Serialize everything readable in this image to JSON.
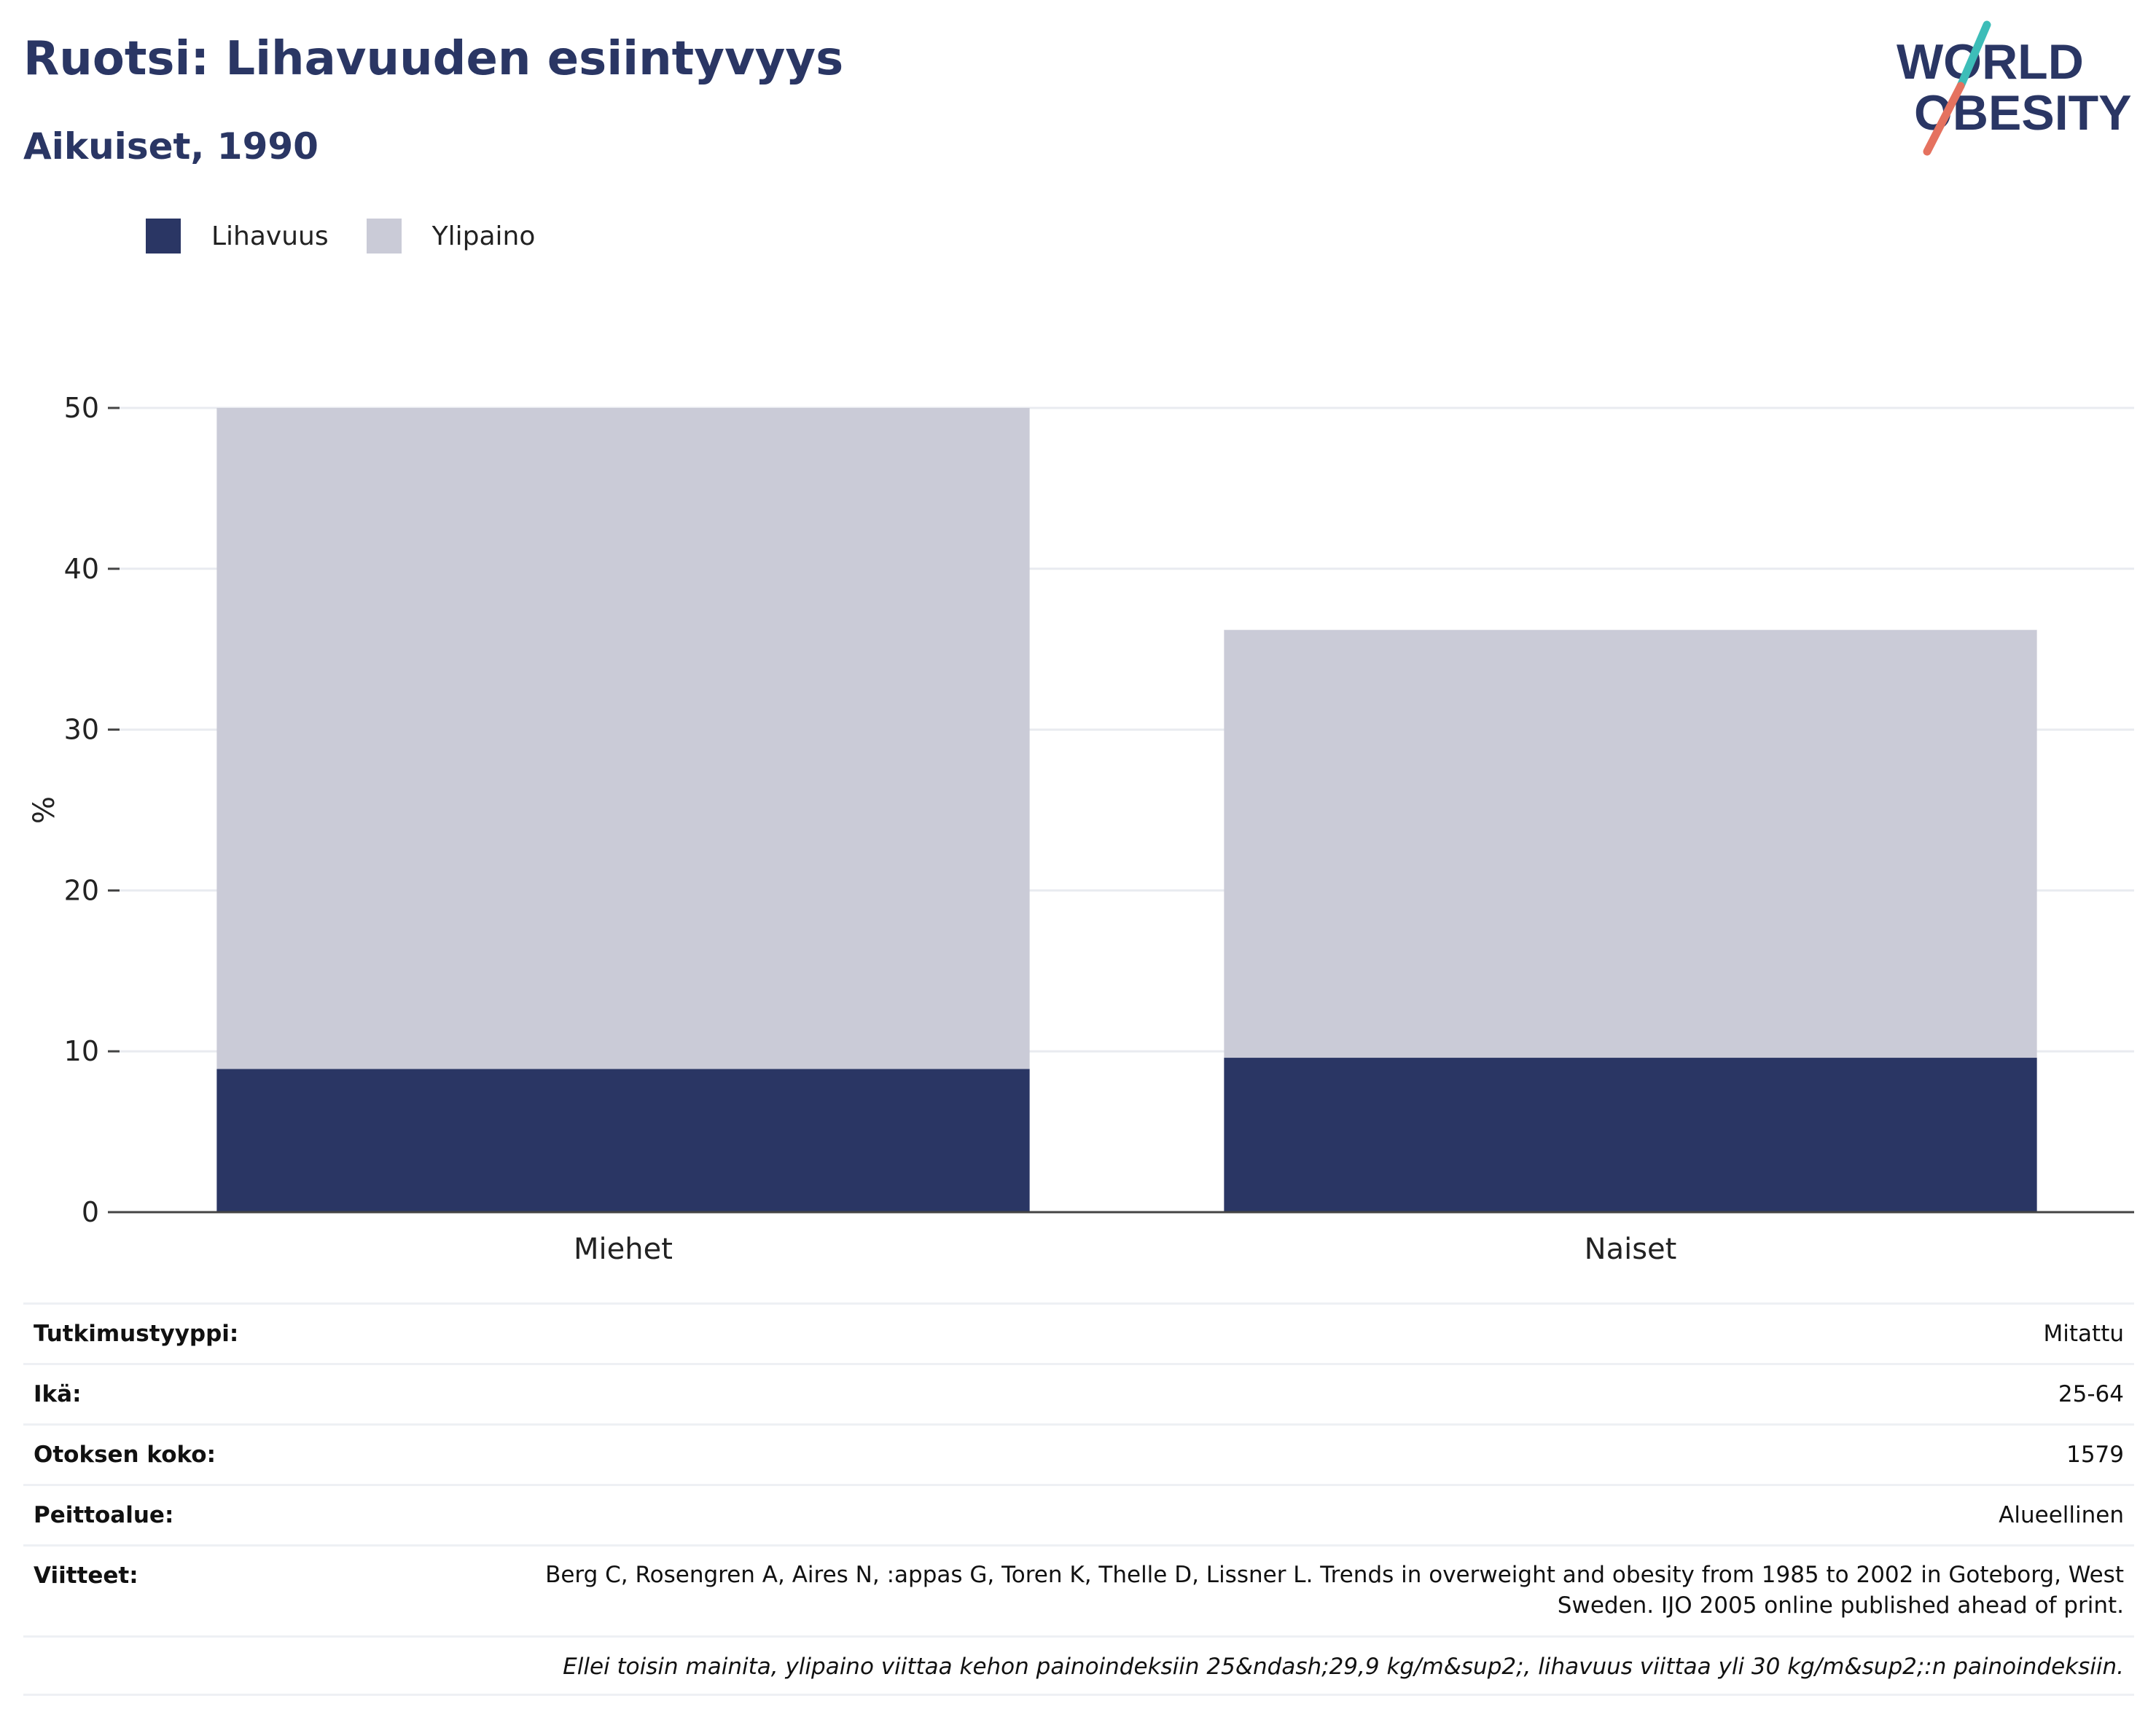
{
  "header": {
    "title": "Ruotsi: Lihavuuden esiintyvyys",
    "subtitle": "Aikuiset, 1990"
  },
  "logo": {
    "line1": "WORLD",
    "line2": "OBESITY",
    "colors": {
      "text": "#2a3664",
      "slash_top": "#3dbdb8",
      "slash_bottom": "#e5725f"
    }
  },
  "legend": [
    {
      "label": "Lihavuus",
      "color": "#2a3664"
    },
    {
      "label": "Ylipaino",
      "color": "#cacbd7"
    }
  ],
  "chart_data": {
    "type": "bar",
    "stacked": true,
    "categories": [
      "Miehet",
      "Naiset"
    ],
    "series": [
      {
        "name": "Lihavuus",
        "values": [
          8.9,
          9.6
        ],
        "color": "#2a3664"
      },
      {
        "name": "Ylipaino",
        "values": [
          41.1,
          26.6
        ],
        "color": "#cacbd7"
      }
    ],
    "ylabel": "%",
    "xlabel": "",
    "ylim": [
      0,
      50
    ],
    "yticks": [
      0,
      10,
      20,
      30,
      40,
      50
    ],
    "grid": true,
    "legend_position": "top-left"
  },
  "info": {
    "study_type": {
      "label": "Tutkimustyyppi:",
      "value": "Mitattu"
    },
    "age": {
      "label": "Ikä:",
      "value": "25-64"
    },
    "sample_size": {
      "label": "Otoksen koko:",
      "value": "1579"
    },
    "coverage": {
      "label": "Peittoalue:",
      "value": "Alueellinen"
    },
    "references": {
      "label": "Viitteet:",
      "value": "Berg C, Rosengren A, Aires N, :appas G, Toren K, Thelle D, Lissner L. Trends in overweight and obesity from 1985 to 2002 in Goteborg, West Sweden. IJO 2005 online published ahead of print."
    },
    "note": "Ellei toisin mainita, ylipaino viittaa kehon painoindeksiin 25&ndash;29,9 kg/m&sup2;, lihavuus viittaa yli 30 kg/m&sup2;:n painoindeksiin."
  }
}
